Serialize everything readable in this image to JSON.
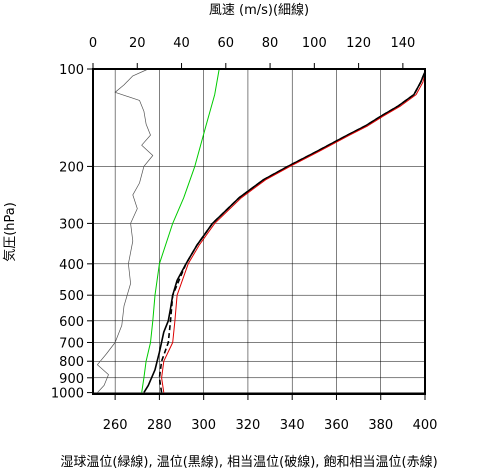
{
  "chart_data": {
    "type": "line",
    "title": "",
    "top_axis": {
      "label": "風速 (m/s)(細線)",
      "range": [
        0,
        150
      ],
      "ticks": [
        0,
        20,
        40,
        60,
        80,
        100,
        120,
        140
      ]
    },
    "bottom_axis": {
      "label": "湿球温位(緑線), 温位(黒線), 相当温位(破線), 飽和相当温位(赤線)",
      "range": [
        250,
        400
      ],
      "ticks": [
        260,
        280,
        300,
        320,
        340,
        360,
        380,
        400
      ]
    },
    "left_axis": {
      "label": "気圧(hPa)",
      "scale": "log",
      "range": [
        1010,
        100
      ],
      "ticks": [
        100,
        200,
        300,
        400,
        500,
        600,
        700,
        800,
        900,
        1000
      ]
    },
    "grid": true,
    "series": [
      {
        "name": "風速",
        "axis": "top",
        "color": "#555555",
        "style": "thin",
        "points": [
          {
            "p": 1000,
            "v": 2
          },
          {
            "p": 950,
            "v": 5
          },
          {
            "p": 880,
            "v": 7
          },
          {
            "p": 820,
            "v": 2
          },
          {
            "p": 760,
            "v": 6
          },
          {
            "p": 700,
            "v": 10
          },
          {
            "p": 620,
            "v": 13
          },
          {
            "p": 540,
            "v": 14
          },
          {
            "p": 460,
            "v": 17
          },
          {
            "p": 400,
            "v": 16
          },
          {
            "p": 340,
            "v": 18
          },
          {
            "p": 300,
            "v": 17
          },
          {
            "p": 270,
            "v": 20
          },
          {
            "p": 245,
            "v": 18
          },
          {
            "p": 225,
            "v": 21
          },
          {
            "p": 200,
            "v": 23
          },
          {
            "p": 185,
            "v": 27
          },
          {
            "p": 172,
            "v": 22
          },
          {
            "p": 160,
            "v": 26
          },
          {
            "p": 148,
            "v": 24
          },
          {
            "p": 135,
            "v": 23
          },
          {
            "p": 125,
            "v": 21
          },
          {
            "p": 118,
            "v": 10
          },
          {
            "p": 112,
            "v": 14
          },
          {
            "p": 105,
            "v": 18
          },
          {
            "p": 100,
            "v": 25
          }
        ]
      },
      {
        "name": "湿球温位",
        "axis": "bottom",
        "color": "#00cc00",
        "style": "solid",
        "points": [
          {
            "p": 1000,
            "v": 272
          },
          {
            "p": 900,
            "v": 273
          },
          {
            "p": 800,
            "v": 274
          },
          {
            "p": 700,
            "v": 276
          },
          {
            "p": 600,
            "v": 277
          },
          {
            "p": 500,
            "v": 278
          },
          {
            "p": 400,
            "v": 280
          },
          {
            "p": 300,
            "v": 286
          },
          {
            "p": 250,
            "v": 291
          },
          {
            "p": 200,
            "v": 296
          },
          {
            "p": 150,
            "v": 301
          },
          {
            "p": 120,
            "v": 305
          },
          {
            "p": 100,
            "v": 307
          }
        ]
      },
      {
        "name": "温位",
        "axis": "bottom",
        "color": "#000000",
        "style": "solid",
        "points": [
          {
            "p": 1000,
            "v": 273
          },
          {
            "p": 950,
            "v": 275
          },
          {
            "p": 850,
            "v": 278
          },
          {
            "p": 750,
            "v": 280
          },
          {
            "p": 650,
            "v": 282
          },
          {
            "p": 600,
            "v": 284
          },
          {
            "p": 550,
            "v": 285
          },
          {
            "p": 500,
            "v": 286
          },
          {
            "p": 450,
            "v": 288
          },
          {
            "p": 400,
            "v": 292
          },
          {
            "p": 350,
            "v": 297
          },
          {
            "p": 300,
            "v": 304
          },
          {
            "p": 250,
            "v": 316
          },
          {
            "p": 220,
            "v": 327
          },
          {
            "p": 200,
            "v": 338
          },
          {
            "p": 180,
            "v": 351
          },
          {
            "p": 160,
            "v": 365
          },
          {
            "p": 150,
            "v": 373
          },
          {
            "p": 140,
            "v": 380
          },
          {
            "p": 130,
            "v": 388
          },
          {
            "p": 120,
            "v": 395
          },
          {
            "p": 110,
            "v": 398
          },
          {
            "p": 102,
            "v": 400
          }
        ]
      },
      {
        "name": "相当温位",
        "axis": "bottom",
        "color": "#000000",
        "style": "dashed",
        "points": [
          {
            "p": 1000,
            "v": 281
          },
          {
            "p": 900,
            "v": 280
          },
          {
            "p": 800,
            "v": 281
          },
          {
            "p": 700,
            "v": 284
          },
          {
            "p": 600,
            "v": 285
          },
          {
            "p": 500,
            "v": 286
          },
          {
            "p": 400,
            "v": 292
          },
          {
            "p": 350,
            "v": 297
          },
          {
            "p": 300,
            "v": 304
          },
          {
            "p": 250,
            "v": 316
          },
          {
            "p": 220,
            "v": 327
          },
          {
            "p": 200,
            "v": 338
          },
          {
            "p": 180,
            "v": 351
          },
          {
            "p": 160,
            "v": 365
          },
          {
            "p": 150,
            "v": 373
          },
          {
            "p": 140,
            "v": 380
          },
          {
            "p": 130,
            "v": 388
          },
          {
            "p": 120,
            "v": 395
          },
          {
            "p": 110,
            "v": 398
          },
          {
            "p": 102,
            "v": 400
          }
        ]
      },
      {
        "name": "飽和相当温位",
        "axis": "bottom",
        "color": "#dd0000",
        "style": "solid",
        "points": [
          {
            "p": 1000,
            "v": 282
          },
          {
            "p": 900,
            "v": 281
          },
          {
            "p": 800,
            "v": 282
          },
          {
            "p": 700,
            "v": 286
          },
          {
            "p": 600,
            "v": 287
          },
          {
            "p": 500,
            "v": 288
          },
          {
            "p": 400,
            "v": 293
          },
          {
            "p": 350,
            "v": 298
          },
          {
            "p": 300,
            "v": 305
          },
          {
            "p": 250,
            "v": 317
          },
          {
            "p": 220,
            "v": 328
          },
          {
            "p": 200,
            "v": 339
          },
          {
            "p": 180,
            "v": 352
          },
          {
            "p": 160,
            "v": 366
          },
          {
            "p": 150,
            "v": 374
          },
          {
            "p": 140,
            "v": 381
          },
          {
            "p": 130,
            "v": 389
          },
          {
            "p": 120,
            "v": 396
          },
          {
            "p": 110,
            "v": 399
          },
          {
            "p": 104,
            "v": 400
          }
        ]
      }
    ]
  }
}
